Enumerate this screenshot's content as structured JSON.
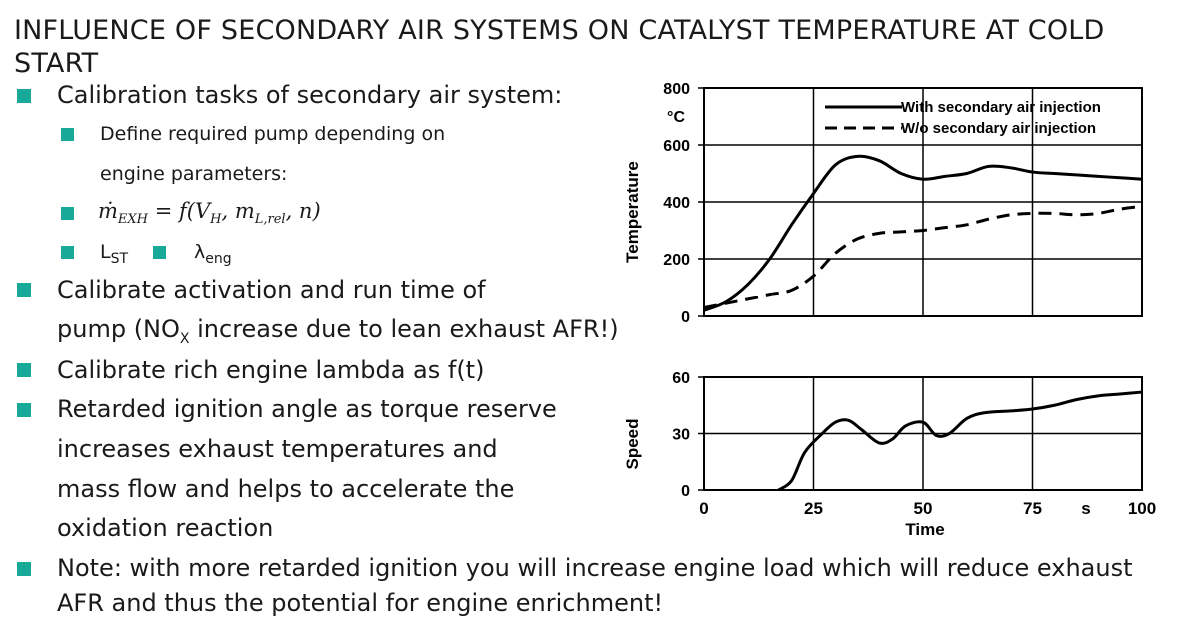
{
  "title": "INFLUENCE OF SECONDARY AIR SYSTEMS ON CATALYST TEMPERATURE AT COLD START",
  "colors": {
    "bullet": "#18a999"
  },
  "bullets": [
    {
      "text": "Calibration tasks of secondary air system:",
      "sub": [
        {
          "line1": "Define required pump depending on",
          "line2": "engine parameters:"
        },
        {
          "formula": "ṁEXH = f(VH, mL,rel, n)"
        },
        {
          "a": "L",
          "a_sub": "ST",
          "b": "λ",
          "b_sub": "eng"
        }
      ]
    },
    {
      "line1": "Calibrate activation and run time of",
      "line2_pre": "pump (NO",
      "line2_sub": "X",
      "line2_post": " increase due to lean exhaust AFR!)"
    },
    {
      "text": "Calibrate rich engine lambda as f(t)"
    },
    {
      "line1": "Retarded ignition angle as torque reserve",
      "line2": "increases exhaust temperatures and",
      "line3": "mass flow and helps to accelerate the",
      "line4": "oxidation reaction"
    },
    {
      "line1": "Note: with more retarded ignition you will increase engine load which will reduce exhaust",
      "line2": "AFR and thus the potential for engine enrichment!"
    }
  ],
  "chart_data": [
    {
      "type": "line",
      "ylabel": "Temperature",
      "yunit": "°C",
      "ylim": [
        0,
        800
      ],
      "yticks": [
        "0",
        "200",
        "400",
        "600",
        "800"
      ],
      "xlim": [
        0,
        100
      ],
      "grid": true,
      "legend_position": "top-right",
      "series": [
        {
          "name": "With secondary air injection",
          "style": "solid",
          "x": [
            0,
            5,
            10,
            15,
            20,
            25,
            30,
            35,
            40,
            45,
            50,
            55,
            60,
            65,
            70,
            75,
            80,
            85,
            90,
            95,
            100
          ],
          "y": [
            20,
            50,
            110,
            200,
            320,
            430,
            530,
            560,
            545,
            500,
            480,
            490,
            500,
            525,
            520,
            505,
            500,
            495,
            490,
            485,
            480
          ]
        },
        {
          "name": "W/o secondary air injection",
          "style": "dashed",
          "x": [
            0,
            5,
            10,
            15,
            20,
            25,
            30,
            35,
            40,
            45,
            50,
            55,
            60,
            65,
            70,
            75,
            80,
            85,
            90,
            95,
            100
          ],
          "y": [
            30,
            45,
            60,
            75,
            90,
            140,
            220,
            270,
            290,
            295,
            300,
            310,
            320,
            340,
            355,
            360,
            360,
            355,
            360,
            375,
            385
          ]
        }
      ]
    },
    {
      "type": "line",
      "ylabel": "Speed",
      "ylim": [
        0,
        60
      ],
      "yticks": [
        "0",
        "30",
        "60"
      ],
      "xlim": [
        0,
        100
      ],
      "xlabel": "Time",
      "xunit": "s",
      "xticks": [
        "0",
        "25",
        "50",
        "75",
        "100"
      ],
      "grid": true,
      "series": [
        {
          "style": "solid",
          "x": [
            17,
            20,
            23,
            27,
            30,
            33,
            36,
            40,
            43,
            46,
            50,
            53,
            56,
            60,
            64,
            70,
            75,
            80,
            85,
            90,
            95,
            100
          ],
          "y": [
            0,
            5,
            20,
            30,
            36,
            37,
            32,
            25,
            27,
            34,
            36,
            29,
            30,
            38,
            41,
            42,
            43,
            45,
            48,
            50,
            51,
            52
          ]
        }
      ]
    }
  ]
}
